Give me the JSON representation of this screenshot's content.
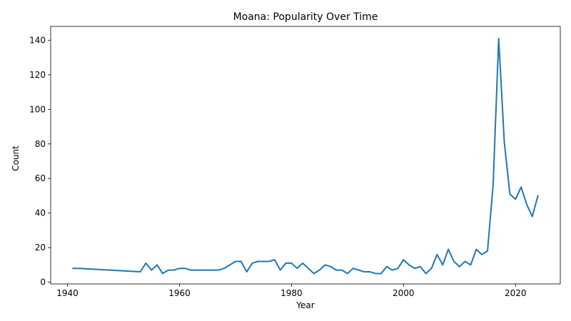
{
  "chart_data": {
    "type": "line",
    "title": "Moana: Popularity Over Time",
    "xlabel": "Year",
    "ylabel": "Count",
    "xlim": [
      1937,
      2028
    ],
    "ylim": [
      -1,
      148
    ],
    "xticks": [
      1940,
      1960,
      1980,
      2000,
      2020
    ],
    "yticks": [
      0,
      20,
      40,
      60,
      80,
      100,
      120,
      140
    ],
    "grid": false,
    "legend": "none",
    "series": [
      {
        "color": "#1f77b4",
        "points": [
          [
            1941,
            8
          ],
          [
            1942,
            8
          ],
          [
            1953,
            6
          ],
          [
            1954,
            11
          ],
          [
            1955,
            7
          ],
          [
            1956,
            10
          ],
          [
            1957,
            5
          ],
          [
            1958,
            7
          ],
          [
            1959,
            7
          ],
          [
            1960,
            8
          ],
          [
            1961,
            8
          ],
          [
            1962,
            7
          ],
          [
            1963,
            7
          ],
          [
            1964,
            7
          ],
          [
            1965,
            7
          ],
          [
            1966,
            7
          ],
          [
            1967,
            7
          ],
          [
            1968,
            8
          ],
          [
            1969,
            10
          ],
          [
            1970,
            12
          ],
          [
            1971,
            12
          ],
          [
            1972,
            6
          ],
          [
            1973,
            11
          ],
          [
            1974,
            12
          ],
          [
            1975,
            12
          ],
          [
            1976,
            12
          ],
          [
            1977,
            13
          ],
          [
            1978,
            7
          ],
          [
            1979,
            11
          ],
          [
            1980,
            11
          ],
          [
            1981,
            8
          ],
          [
            1982,
            11
          ],
          [
            1983,
            8
          ],
          [
            1984,
            5
          ],
          [
            1985,
            7
          ],
          [
            1986,
            10
          ],
          [
            1987,
            9
          ],
          [
            1988,
            7
          ],
          [
            1989,
            7
          ],
          [
            1990,
            5
          ],
          [
            1991,
            8
          ],
          [
            1992,
            7
          ],
          [
            1993,
            6
          ],
          [
            1994,
            6
          ],
          [
            1995,
            5
          ],
          [
            1996,
            5
          ],
          [
            1997,
            9
          ],
          [
            1998,
            7
          ],
          [
            1999,
            8
          ],
          [
            2000,
            13
          ],
          [
            2001,
            10
          ],
          [
            2002,
            8
          ],
          [
            2003,
            9
          ],
          [
            2004,
            5
          ],
          [
            2005,
            8
          ],
          [
            2006,
            16
          ],
          [
            2007,
            10
          ],
          [
            2008,
            19
          ],
          [
            2009,
            12
          ],
          [
            2010,
            9
          ],
          [
            2011,
            12
          ],
          [
            2012,
            10
          ],
          [
            2013,
            19
          ],
          [
            2014,
            16
          ],
          [
            2015,
            18
          ],
          [
            2016,
            56
          ],
          [
            2017,
            141
          ],
          [
            2018,
            81
          ],
          [
            2019,
            51
          ],
          [
            2020,
            48
          ],
          [
            2021,
            55
          ],
          [
            2022,
            45
          ],
          [
            2023,
            38
          ],
          [
            2024,
            50
          ]
        ]
      }
    ]
  }
}
